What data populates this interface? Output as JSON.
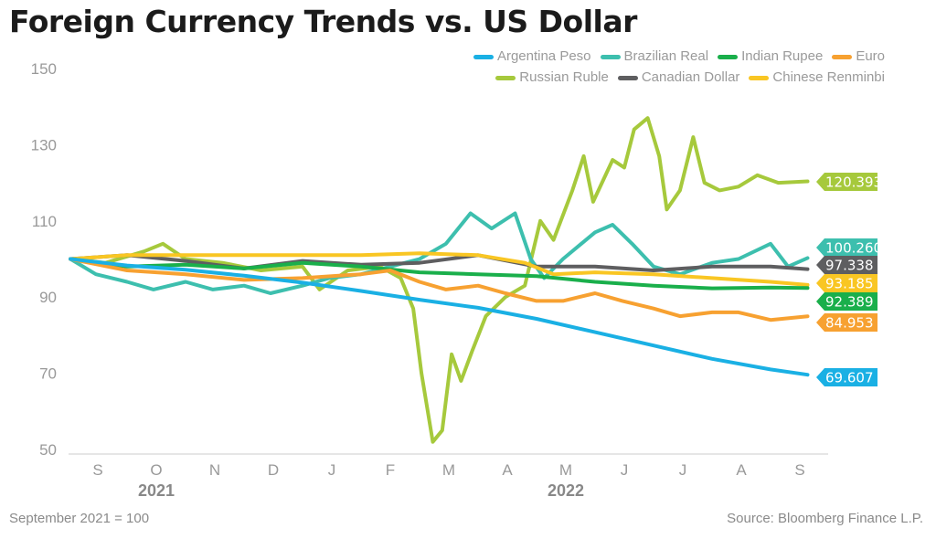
{
  "title": "Foreign Currency Trends vs. US Dollar",
  "footnote": "September 2021 = 100",
  "source": "Source: Bloomberg Finance L.P.",
  "chart_data": {
    "type": "line",
    "title": "Foreign Currency Trends vs. US Dollar",
    "ylim": [
      50,
      150
    ],
    "yticks": [
      50,
      70,
      90,
      110,
      130,
      150
    ],
    "xlim": [
      "2021-09-01",
      "2022-09-30"
    ],
    "month_labels": [
      "S",
      "O",
      "N",
      "D",
      "J",
      "F",
      "M",
      "A",
      "M",
      "J",
      "J",
      "A",
      "S"
    ],
    "year_labels": [
      {
        "label": "2021",
        "month": "2021-10"
      },
      {
        "label": "2022",
        "month": "2022-05"
      }
    ],
    "grid": false,
    "legend": "top-right",
    "series": [
      {
        "name": "Argentina Peso",
        "color": "#1ab0e4",
        "end_label": "69.607",
        "points": [
          [
            "2021-09-02",
            100
          ],
          [
            "2021-10-01",
            98.3
          ],
          [
            "2021-11-01",
            97.2
          ],
          [
            "2021-12-01",
            95.6
          ],
          [
            "2022-01-01",
            93.8
          ],
          [
            "2022-02-01",
            91.6
          ],
          [
            "2022-03-01",
            89.3
          ],
          [
            "2022-04-01",
            87.2
          ],
          [
            "2022-05-01",
            84.3
          ],
          [
            "2022-06-01",
            80.8
          ],
          [
            "2022-07-01",
            77.3
          ],
          [
            "2022-08-01",
            73.8
          ],
          [
            "2022-09-01",
            71
          ],
          [
            "2022-09-20",
            69.607
          ]
        ]
      },
      {
        "name": "Brazilian Real",
        "color": "#3dbfae",
        "end_label": "100.260",
        "points": [
          [
            "2021-09-02",
            100
          ],
          [
            "2021-09-15",
            96
          ],
          [
            "2021-10-01",
            94
          ],
          [
            "2021-10-15",
            92
          ],
          [
            "2021-11-01",
            94
          ],
          [
            "2021-11-15",
            92
          ],
          [
            "2021-12-01",
            93
          ],
          [
            "2021-12-15",
            91
          ],
          [
            "2022-01-01",
            93
          ],
          [
            "2022-01-15",
            95
          ],
          [
            "2022-02-01",
            96
          ],
          [
            "2022-02-15",
            98
          ],
          [
            "2022-03-01",
            100
          ],
          [
            "2022-03-15",
            104
          ],
          [
            "2022-03-28",
            112
          ],
          [
            "2022-04-08",
            108
          ],
          [
            "2022-04-20",
            112
          ],
          [
            "2022-04-28",
            100
          ],
          [
            "2022-05-05",
            95
          ],
          [
            "2022-05-15",
            100
          ],
          [
            "2022-06-01",
            107
          ],
          [
            "2022-06-10",
            109
          ],
          [
            "2022-06-20",
            104
          ],
          [
            "2022-07-01",
            98
          ],
          [
            "2022-07-15",
            96
          ],
          [
            "2022-08-01",
            99
          ],
          [
            "2022-08-15",
            100
          ],
          [
            "2022-09-01",
            104
          ],
          [
            "2022-09-10",
            98
          ],
          [
            "2022-09-20",
            100.26
          ]
        ]
      },
      {
        "name": "Indian Rupee",
        "color": "#1aaf4b",
        "end_label": "92.389",
        "points": [
          [
            "2021-09-02",
            100
          ],
          [
            "2021-10-01",
            98
          ],
          [
            "2021-11-01",
            98.5
          ],
          [
            "2021-12-01",
            97.5
          ],
          [
            "2022-01-01",
            99
          ],
          [
            "2022-02-01",
            98
          ],
          [
            "2022-03-01",
            96.5
          ],
          [
            "2022-04-01",
            96
          ],
          [
            "2022-05-01",
            95.5
          ],
          [
            "2022-06-01",
            94
          ],
          [
            "2022-07-01",
            93
          ],
          [
            "2022-08-01",
            92.3
          ],
          [
            "2022-09-01",
            92.5
          ],
          [
            "2022-09-20",
            92.389
          ]
        ]
      },
      {
        "name": "Euro",
        "color": "#f7a131",
        "end_label": "84.953",
        "points": [
          [
            "2021-09-02",
            100
          ],
          [
            "2021-10-01",
            97
          ],
          [
            "2021-11-01",
            96
          ],
          [
            "2021-12-01",
            94.5
          ],
          [
            "2022-01-01",
            95
          ],
          [
            "2022-02-01",
            96
          ],
          [
            "2022-02-15",
            97
          ],
          [
            "2022-03-01",
            94
          ],
          [
            "2022-03-15",
            92
          ],
          [
            "2022-04-01",
            93
          ],
          [
            "2022-04-15",
            91
          ],
          [
            "2022-05-01",
            89
          ],
          [
            "2022-05-15",
            89
          ],
          [
            "2022-06-01",
            91
          ],
          [
            "2022-06-15",
            89
          ],
          [
            "2022-07-01",
            87
          ],
          [
            "2022-07-15",
            85
          ],
          [
            "2022-08-01",
            86
          ],
          [
            "2022-08-15",
            86
          ],
          [
            "2022-09-01",
            84
          ],
          [
            "2022-09-20",
            84.953
          ]
        ]
      },
      {
        "name": "Russian Ruble",
        "color": "#a6c93c",
        "end_label": "120.393",
        "points": [
          [
            "2021-09-02",
            100
          ],
          [
            "2021-09-20",
            99
          ],
          [
            "2021-10-10",
            102
          ],
          [
            "2021-10-20",
            104
          ],
          [
            "2021-11-01",
            100
          ],
          [
            "2021-11-20",
            99
          ],
          [
            "2021-12-10",
            97
          ],
          [
            "2022-01-01",
            98
          ],
          [
            "2022-01-10",
            92
          ],
          [
            "2022-01-25",
            97
          ],
          [
            "2022-02-10",
            98
          ],
          [
            "2022-02-20",
            95
          ],
          [
            "2022-02-26",
            87
          ],
          [
            "2022-03-02",
            70
          ],
          [
            "2022-03-08",
            52
          ],
          [
            "2022-03-13",
            55
          ],
          [
            "2022-03-18",
            75
          ],
          [
            "2022-03-23",
            68
          ],
          [
            "2022-03-29",
            76
          ],
          [
            "2022-04-05",
            85
          ],
          [
            "2022-04-15",
            90
          ],
          [
            "2022-04-25",
            93
          ],
          [
            "2022-05-03",
            110
          ],
          [
            "2022-05-10",
            105
          ],
          [
            "2022-05-20",
            118
          ],
          [
            "2022-05-26",
            127
          ],
          [
            "2022-05-31",
            115
          ],
          [
            "2022-06-10",
            126
          ],
          [
            "2022-06-16",
            124
          ],
          [
            "2022-06-21",
            134
          ],
          [
            "2022-06-28",
            137
          ],
          [
            "2022-07-04",
            127
          ],
          [
            "2022-07-08",
            113
          ],
          [
            "2022-07-15",
            118
          ],
          [
            "2022-07-22",
            132
          ],
          [
            "2022-07-28",
            120
          ],
          [
            "2022-08-05",
            118
          ],
          [
            "2022-08-15",
            119
          ],
          [
            "2022-08-25",
            122
          ],
          [
            "2022-09-05",
            120
          ],
          [
            "2022-09-20",
            120.393
          ]
        ]
      },
      {
        "name": "Canadian Dollar",
        "color": "#5e5e60",
        "end_label": "97.338",
        "points": [
          [
            "2021-09-02",
            100
          ],
          [
            "2021-10-01",
            101
          ],
          [
            "2021-11-01",
            99.5
          ],
          [
            "2021-12-01",
            97.5
          ],
          [
            "2022-01-01",
            99.5
          ],
          [
            "2022-02-01",
            98.5
          ],
          [
            "2022-03-01",
            99
          ],
          [
            "2022-04-01",
            101
          ],
          [
            "2022-05-01",
            98
          ],
          [
            "2022-06-01",
            98
          ],
          [
            "2022-07-01",
            97
          ],
          [
            "2022-08-01",
            98
          ],
          [
            "2022-09-01",
            98
          ],
          [
            "2022-09-20",
            97.338
          ]
        ]
      },
      {
        "name": "Chinese Renminbi",
        "color": "#f9c623",
        "end_label": "93.185",
        "points": [
          [
            "2021-09-02",
            100
          ],
          [
            "2021-10-01",
            101
          ],
          [
            "2021-11-01",
            101
          ],
          [
            "2021-12-01",
            101
          ],
          [
            "2022-01-01",
            101
          ],
          [
            "2022-02-01",
            101
          ],
          [
            "2022-03-01",
            101.5
          ],
          [
            "2022-04-01",
            101
          ],
          [
            "2022-04-25",
            99
          ],
          [
            "2022-05-10",
            96
          ],
          [
            "2022-06-01",
            96.5
          ],
          [
            "2022-07-01",
            96
          ],
          [
            "2022-08-01",
            95
          ],
          [
            "2022-09-01",
            94
          ],
          [
            "2022-09-20",
            93.185
          ]
        ]
      }
    ]
  }
}
